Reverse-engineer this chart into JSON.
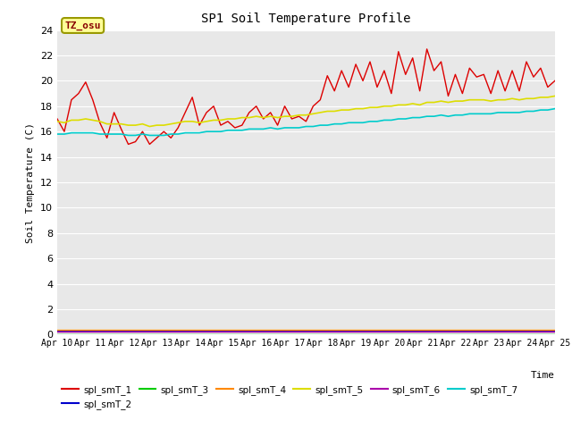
{
  "title": "SP1 Soil Temperature Profile",
  "xlabel": "Time",
  "ylabel": "Soil Temperature (C)",
  "annotation": "TZ_osu",
  "annotation_color": "#880000",
  "annotation_bg": "#ffff99",
  "annotation_border": "#999900",
  "ylim": [
    0,
    24
  ],
  "yticks": [
    0,
    2,
    4,
    6,
    8,
    10,
    12,
    14,
    16,
    18,
    20,
    22,
    24
  ],
  "xtick_labels": [
    "Apr 10",
    "Apr 11",
    "Apr 12",
    "Apr 13",
    "Apr 14",
    "Apr 15",
    "Apr 16",
    "Apr 17",
    "Apr 18",
    "Apr 19",
    "Apr 20",
    "Apr 21",
    "Apr 22",
    "Apr 23",
    "Apr 24",
    "Apr 25"
  ],
  "legend_labels": [
    "spl_smT_1",
    "spl_smT_2",
    "spl_smT_3",
    "spl_smT_4",
    "spl_smT_5",
    "spl_smT_6",
    "spl_smT_7"
  ],
  "colors": {
    "spl_smT_1": "#dd0000",
    "spl_smT_2": "#0000cc",
    "spl_smT_3": "#00cc00",
    "spl_smT_4": "#ff8800",
    "spl_smT_5": "#dddd00",
    "spl_smT_6": "#aa00aa",
    "spl_smT_7": "#00cccc"
  },
  "bg_color": "#e8e8e8",
  "fig_bg": "#ffffff",
  "grid_color": "#ffffff",
  "spl_smT_1": [
    17.0,
    16.0,
    18.5,
    19.0,
    19.9,
    18.5,
    16.7,
    15.5,
    17.5,
    16.2,
    15.0,
    15.2,
    16.0,
    15.0,
    15.5,
    16.0,
    15.5,
    16.3,
    17.5,
    18.7,
    16.5,
    17.5,
    18.0,
    16.5,
    16.8,
    16.3,
    16.5,
    17.5,
    18.0,
    17.0,
    17.5,
    16.5,
    18.0,
    17.0,
    17.2,
    16.8,
    18.0,
    18.5,
    20.4,
    19.2,
    20.8,
    19.5,
    21.3,
    20.0,
    21.5,
    19.5,
    20.8,
    19.0,
    22.3,
    20.5,
    21.8,
    19.2,
    22.5,
    20.8,
    21.5,
    18.8,
    20.5,
    19.0,
    21.0,
    20.3,
    20.5,
    19.0,
    20.8,
    19.2,
    20.8,
    19.2,
    21.5,
    20.3,
    21.0,
    19.5,
    20.0
  ],
  "spl_smT_5": [
    16.8,
    16.7,
    16.9,
    16.9,
    17.0,
    16.9,
    16.8,
    16.6,
    16.6,
    16.6,
    16.5,
    16.5,
    16.6,
    16.4,
    16.5,
    16.5,
    16.6,
    16.7,
    16.8,
    16.8,
    16.7,
    16.8,
    16.9,
    16.9,
    17.0,
    17.0,
    17.1,
    17.1,
    17.2,
    17.1,
    17.2,
    17.1,
    17.2,
    17.2,
    17.3,
    17.3,
    17.4,
    17.5,
    17.6,
    17.6,
    17.7,
    17.7,
    17.8,
    17.8,
    17.9,
    17.9,
    18.0,
    18.0,
    18.1,
    18.1,
    18.2,
    18.1,
    18.3,
    18.3,
    18.4,
    18.3,
    18.4,
    18.4,
    18.5,
    18.5,
    18.5,
    18.4,
    18.5,
    18.5,
    18.6,
    18.5,
    18.6,
    18.6,
    18.7,
    18.7,
    18.8
  ],
  "spl_smT_7": [
    15.8,
    15.8,
    15.9,
    15.9,
    15.9,
    15.9,
    15.8,
    15.8,
    15.8,
    15.8,
    15.7,
    15.7,
    15.8,
    15.7,
    15.7,
    15.7,
    15.8,
    15.8,
    15.9,
    15.9,
    15.9,
    16.0,
    16.0,
    16.0,
    16.1,
    16.1,
    16.1,
    16.2,
    16.2,
    16.2,
    16.3,
    16.2,
    16.3,
    16.3,
    16.3,
    16.4,
    16.4,
    16.5,
    16.5,
    16.6,
    16.6,
    16.7,
    16.7,
    16.7,
    16.8,
    16.8,
    16.9,
    16.9,
    17.0,
    17.0,
    17.1,
    17.1,
    17.2,
    17.2,
    17.3,
    17.2,
    17.3,
    17.3,
    17.4,
    17.4,
    17.4,
    17.4,
    17.5,
    17.5,
    17.5,
    17.5,
    17.6,
    17.6,
    17.7,
    17.7,
    17.8
  ],
  "spl_smT_2": [
    0.3,
    0.3,
    0.3,
    0.3,
    0.3,
    0.3,
    0.3,
    0.3,
    0.3,
    0.3,
    0.3,
    0.3,
    0.3,
    0.3,
    0.3,
    0.3,
    0.3,
    0.3,
    0.3,
    0.3,
    0.3,
    0.3,
    0.3,
    0.3,
    0.3,
    0.3,
    0.3,
    0.3,
    0.3,
    0.3,
    0.3,
    0.3,
    0.3,
    0.3,
    0.3,
    0.3,
    0.3,
    0.3,
    0.3,
    0.3,
    0.3,
    0.3,
    0.3,
    0.3,
    0.3,
    0.3,
    0.3,
    0.3,
    0.3,
    0.3,
    0.3,
    0.3,
    0.3,
    0.3,
    0.3,
    0.3,
    0.3,
    0.3,
    0.3,
    0.3,
    0.3,
    0.3,
    0.3,
    0.3,
    0.3,
    0.3,
    0.3,
    0.3,
    0.3,
    0.3,
    0.3
  ],
  "spl_smT_3": [
    0.05,
    0.05,
    0.05,
    0.05,
    0.05,
    0.05,
    0.05,
    0.05,
    0.05,
    0.05,
    0.05,
    0.05,
    0.05,
    0.05,
    0.05,
    0.05,
    0.05,
    0.05,
    0.05,
    0.05,
    0.05,
    0.05,
    0.05,
    0.05,
    0.05,
    0.05,
    0.05,
    0.05,
    0.05,
    0.05,
    0.05,
    0.05,
    0.05,
    0.05,
    0.05,
    0.05,
    0.05,
    0.05,
    0.05,
    0.05,
    0.05,
    0.05,
    0.05,
    0.05,
    0.05,
    0.05,
    0.05,
    0.05,
    0.05,
    0.05,
    0.05,
    0.05,
    0.05,
    0.05,
    0.05,
    0.05,
    0.05,
    0.05,
    0.05,
    0.05,
    0.05,
    0.05,
    0.05,
    0.05,
    0.05,
    0.05,
    0.05,
    0.05,
    0.05,
    0.05,
    0.05
  ],
  "spl_smT_4": [
    0.35,
    0.35,
    0.35,
    0.35,
    0.35,
    0.35,
    0.35,
    0.35,
    0.35,
    0.35,
    0.35,
    0.35,
    0.35,
    0.35,
    0.35,
    0.35,
    0.35,
    0.35,
    0.35,
    0.35,
    0.35,
    0.35,
    0.35,
    0.35,
    0.35,
    0.35,
    0.35,
    0.35,
    0.35,
    0.35,
    0.35,
    0.35,
    0.35,
    0.35,
    0.35,
    0.35,
    0.35,
    0.35,
    0.35,
    0.35,
    0.35,
    0.35,
    0.35,
    0.35,
    0.35,
    0.35,
    0.35,
    0.35,
    0.35,
    0.35,
    0.35,
    0.35,
    0.35,
    0.35,
    0.35,
    0.35,
    0.35,
    0.35,
    0.35,
    0.35,
    0.35,
    0.35,
    0.35,
    0.35,
    0.35,
    0.35,
    0.35,
    0.35,
    0.35,
    0.35,
    0.35
  ],
  "spl_smT_6": [
    0.25,
    0.25,
    0.25,
    0.25,
    0.25,
    0.25,
    0.25,
    0.25,
    0.25,
    0.25,
    0.25,
    0.25,
    0.25,
    0.25,
    0.25,
    0.25,
    0.25,
    0.25,
    0.25,
    0.25,
    0.25,
    0.25,
    0.25,
    0.25,
    0.25,
    0.25,
    0.25,
    0.25,
    0.25,
    0.25,
    0.25,
    0.25,
    0.25,
    0.25,
    0.25,
    0.25,
    0.25,
    0.25,
    0.25,
    0.25,
    0.25,
    0.25,
    0.25,
    0.25,
    0.25,
    0.25,
    0.25,
    0.25,
    0.25,
    0.25,
    0.25,
    0.25,
    0.25,
    0.25,
    0.25,
    0.25,
    0.25,
    0.25,
    0.25,
    0.25,
    0.25,
    0.25,
    0.25,
    0.25,
    0.25,
    0.25,
    0.25,
    0.25,
    0.25,
    0.25,
    0.25
  ],
  "n_points": 71
}
